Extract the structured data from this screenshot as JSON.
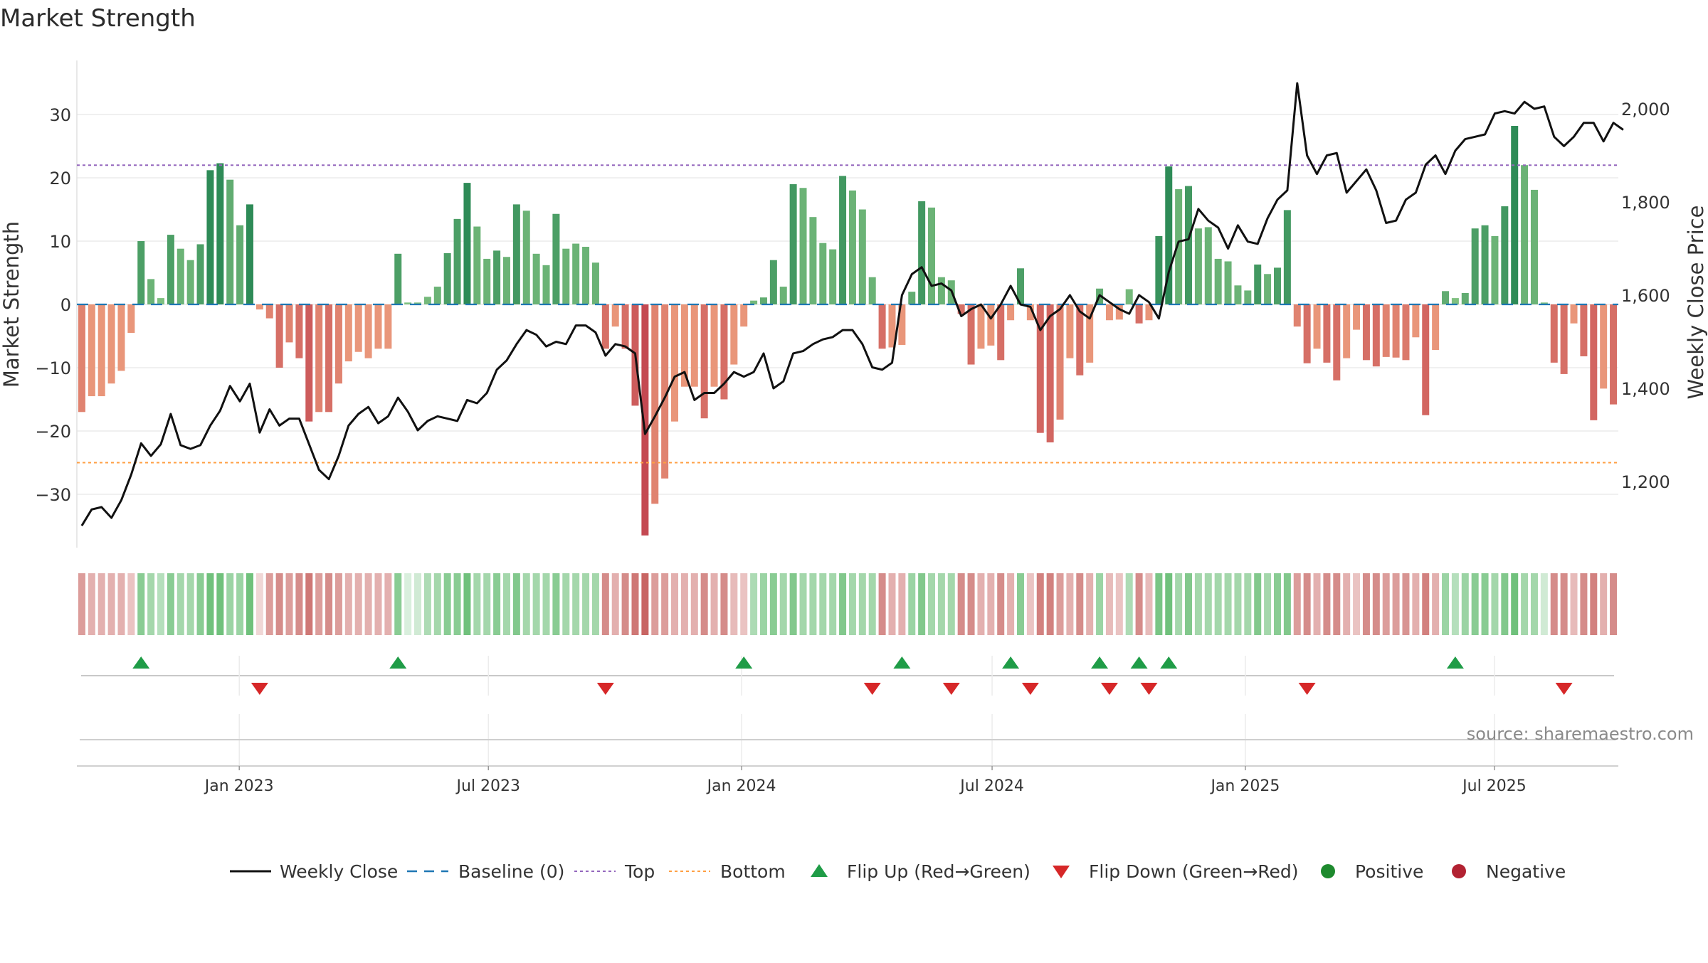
{
  "chart_data": {
    "type": "bar",
    "title": "Market Strength",
    "ylabel": "Market Strength",
    "y2label": "Weekly Close Price",
    "ylim": [
      -39,
      39
    ],
    "y2lim": [
      1060,
      2120
    ],
    "yticks": [
      30,
      20,
      10,
      0,
      -10,
      -20,
      -30
    ],
    "ytick_labels": [
      "30",
      "20",
      "10",
      "0",
      "−10",
      "−20",
      "−30"
    ],
    "y2ticks": [
      2000,
      1800,
      1600,
      1400,
      1200
    ],
    "y2tick_labels": [
      "2,000",
      "1,800",
      "1,600",
      "1,400",
      "1,200"
    ],
    "x_start": "2022-09-05",
    "x_end": "2025-09-29",
    "xticks": [
      "2023-01-01",
      "2023-07-01",
      "2024-01-01",
      "2024-07-01",
      "2025-01-01",
      "2025-07-01"
    ],
    "xtick_labels": [
      "Jan 2023",
      "Jul 2023",
      "Jan 2024",
      "Jul 2024",
      "Jan 2025",
      "Jul 2025"
    ],
    "top_level": 22,
    "bottom_level": -25,
    "strength": [
      -17,
      -14.5,
      -14.5,
      -12.5,
      -10.5,
      -4.5,
      10,
      4,
      1,
      11,
      8.8,
      7,
      9.5,
      21.2,
      22.3,
      19.7,
      12.5,
      15.8,
      -0.8,
      -2.2,
      -10,
      -6,
      -8.5,
      -18.5,
      -17,
      -17,
      -12.5,
      -9,
      -7.5,
      -8.5,
      -7,
      -7,
      8,
      0.3,
      0.3,
      1.2,
      2.8,
      8.1,
      13.5,
      19.2,
      12.3,
      7.2,
      8.5,
      7.5,
      15.8,
      14.8,
      8,
      6.2,
      14.3,
      8.8,
      9.6,
      9.1,
      6.6,
      -7,
      -3.5,
      -7,
      -16,
      -36.5,
      -31.5,
      -27.5,
      -18.5,
      -13,
      -13,
      -18,
      -13,
      -15,
      -9.5,
      -3.5,
      0.6,
      1.1,
      7,
      2.8,
      19,
      18.4,
      13.8,
      9.7,
      8.7,
      20.3,
      18,
      15,
      4.3,
      -7,
      -6.8,
      -6.4,
      2,
      16.3,
      15.3,
      4.3,
      3.8,
      -1.5,
      -9.5,
      -7,
      -6.5,
      -8.8,
      -2.5,
      5.7,
      -2.5,
      -20.3,
      -21.8,
      -18.2,
      -8.5,
      -11.2,
      -9.2,
      2.5,
      -2.5,
      -2.4,
      2.4,
      -3,
      -2.5,
      10.8,
      21.8,
      18.2,
      18.7,
      12,
      12.2,
      7.2,
      6.8,
      3,
      2.2,
      6.3,
      4.8,
      5.8,
      14.9,
      -3.5,
      -9.3,
      -7,
      -9.2,
      -12,
      -8.5,
      -4,
      -8.8,
      -9.8,
      -8.3,
      -8.4,
      -8.8,
      -5.2,
      -17.5,
      -7.2,
      2.1,
      1,
      1.8,
      12,
      12.5,
      10.8,
      15.5,
      28.2,
      22,
      18.1,
      0.3,
      -9.2,
      -11,
      -3,
      -8.2,
      -18.3,
      -13.3,
      -15.8
    ],
    "bar_shade": [
      0.55,
      0.45,
      0.45,
      0.45,
      0.45,
      0.35,
      0.7,
      0.55,
      0.45,
      0.7,
      0.55,
      0.55,
      0.7,
      0.85,
      0.85,
      0.6,
      0.6,
      0.85,
      0.25,
      0.55,
      0.65,
      0.55,
      0.65,
      0.75,
      0.55,
      0.65,
      0.55,
      0.45,
      0.45,
      0.45,
      0.45,
      0.45,
      0.7,
      0.25,
      0.3,
      0.5,
      0.55,
      0.7,
      0.7,
      0.85,
      0.55,
      0.55,
      0.7,
      0.55,
      0.75,
      0.55,
      0.55,
      0.55,
      0.7,
      0.55,
      0.55,
      0.55,
      0.55,
      0.65,
      0.45,
      0.65,
      0.75,
      0.85,
      0.55,
      0.55,
      0.45,
      0.45,
      0.45,
      0.65,
      0.45,
      0.65,
      0.4,
      0.35,
      0.5,
      0.6,
      0.7,
      0.55,
      0.75,
      0.55,
      0.55,
      0.55,
      0.55,
      0.75,
      0.55,
      0.55,
      0.55,
      0.65,
      0.45,
      0.45,
      0.6,
      0.75,
      0.55,
      0.55,
      0.55,
      0.65,
      0.65,
      0.45,
      0.45,
      0.65,
      0.45,
      0.7,
      0.35,
      0.7,
      0.7,
      0.55,
      0.45,
      0.65,
      0.45,
      0.6,
      0.4,
      0.35,
      0.5,
      0.65,
      0.4,
      0.8,
      0.85,
      0.55,
      0.75,
      0.55,
      0.55,
      0.55,
      0.55,
      0.55,
      0.55,
      0.75,
      0.55,
      0.7,
      0.75,
      0.55,
      0.65,
      0.45,
      0.65,
      0.65,
      0.45,
      0.35,
      0.65,
      0.65,
      0.55,
      0.55,
      0.6,
      0.45,
      0.7,
      0.45,
      0.6,
      0.45,
      0.6,
      0.7,
      0.7,
      0.55,
      0.75,
      0.85,
      0.55,
      0.55,
      0.3,
      0.65,
      0.65,
      0.4,
      0.65,
      0.7,
      0.45,
      0.65
    ],
    "weekly_close": [
      1105,
      1140,
      1145,
      1122,
      1160,
      1215,
      1282,
      1255,
      1280,
      1345,
      1278,
      1270,
      1278,
      1320,
      1352,
      1405,
      1372,
      1410,
      1305,
      1355,
      1320,
      1335,
      1335,
      1280,
      1225,
      1205,
      1255,
      1320,
      1345,
      1360,
      1325,
      1340,
      1380,
      1350,
      1310,
      1330,
      1340,
      1335,
      1330,
      1375,
      1368,
      1390,
      1440,
      1460,
      1495,
      1525,
      1515,
      1490,
      1500,
      1495,
      1535,
      1535,
      1520,
      1470,
      1495,
      1490,
      1475,
      1302,
      1340,
      1380,
      1425,
      1435,
      1375,
      1390,
      1390,
      1410,
      1435,
      1425,
      1435,
      1475,
      1400,
      1415,
      1475,
      1480,
      1495,
      1505,
      1510,
      1525,
      1525,
      1495,
      1445,
      1440,
      1455,
      1600,
      1645,
      1660,
      1620,
      1625,
      1610,
      1555,
      1570,
      1580,
      1550,
      1580,
      1620,
      1580,
      1575,
      1525,
      1555,
      1570,
      1600,
      1565,
      1550,
      1600,
      1585,
      1570,
      1560,
      1600,
      1585,
      1550,
      1650,
      1715,
      1720,
      1785,
      1760,
      1745,
      1700,
      1750,
      1715,
      1710,
      1765,
      1805,
      1825,
      2055,
      1900,
      1860,
      1900,
      1905,
      1820,
      1845,
      1870,
      1825,
      1755,
      1760,
      1805,
      1820,
      1880,
      1900,
      1860,
      1910,
      1935,
      1940,
      1945,
      1990,
      1995,
      1990,
      2015,
      2000,
      2005,
      1940,
      1920,
      1940,
      1970,
      1970,
      1930,
      1970,
      1955
    ],
    "flip_up_weeks": [
      6,
      32,
      67,
      83,
      94,
      103,
      107,
      110,
      139
    ],
    "flip_down_weeks": [
      18,
      53,
      80,
      88,
      96,
      104,
      108,
      124,
      150
    ],
    "legend": [
      "Weekly Close",
      "Baseline (0)",
      "Top",
      "Bottom",
      "Flip Up (Red→Green)",
      "Flip Down (Green→Red)",
      "Positive",
      "Negative"
    ],
    "legend_placement": "bottom-center",
    "colors": {
      "positive_dark": "#2e8b57",
      "positive_light": "#7fc080",
      "negative_dark": "#cd5c5c",
      "negative_light": "#e9967a",
      "line": "#111111",
      "baseline": "#1f77b4",
      "top": "#9467bd",
      "bottom": "#ff9f43",
      "flip_up": "#1f9c47",
      "flip_down": "#d62728",
      "positive_marker": "#1e8a2e",
      "negative_marker": "#b22232",
      "grid": "#e6e6e6"
    }
  },
  "source_text": "source: sharemaestro.com"
}
